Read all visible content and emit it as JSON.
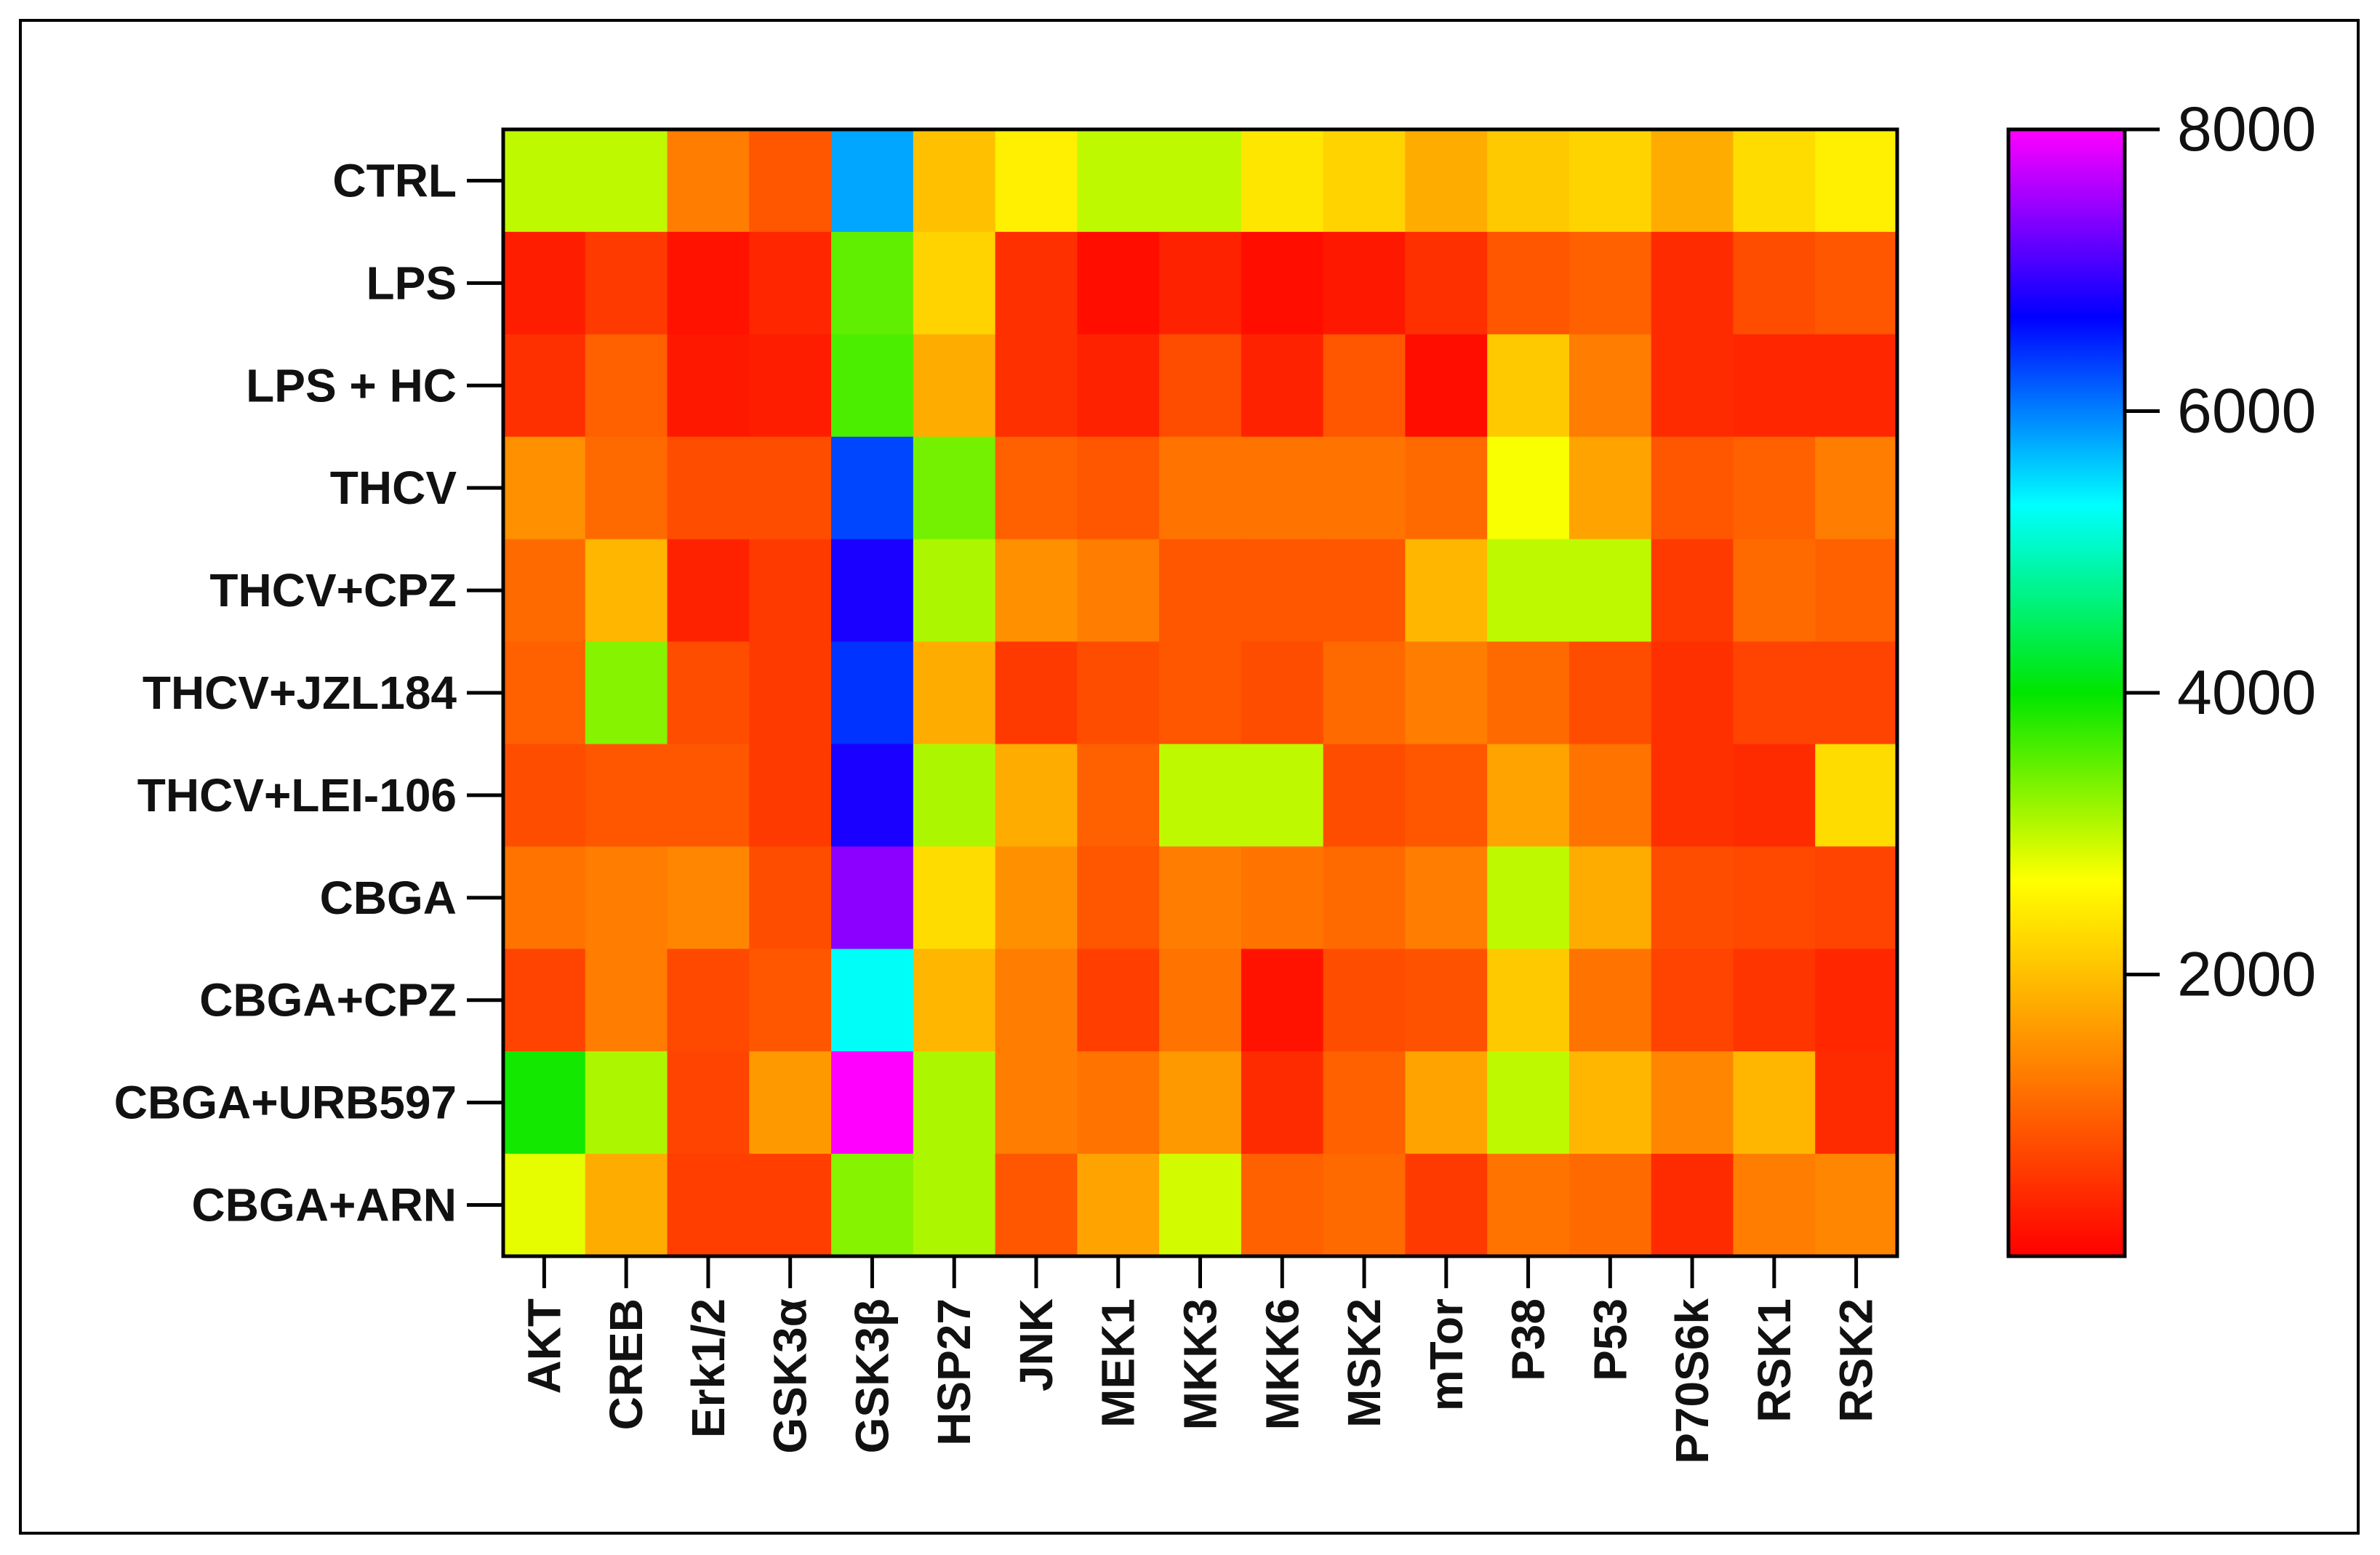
{
  "chart_data": {
    "type": "heatmap",
    "title": "",
    "xlabel": "",
    "ylabel": "",
    "rows": [
      "CTRL",
      "LPS",
      "LPS + HC",
      "THCV",
      "THCV+CPZ",
      "THCV+JZL184",
      "THCV+LEI-106",
      "CBGA",
      "CBGA+CPZ",
      "CBGA+URB597",
      "CBGA+ARN"
    ],
    "columns": [
      "AKT",
      "CREB",
      "Erk1/2",
      "GSK3α",
      "GSK3β",
      "HSP27",
      "JNK",
      "MEK1",
      "MKK3",
      "MKK6",
      "MSK2",
      "mTor",
      "P38",
      "P53",
      "P70S6k",
      "RSK1",
      "RSK2"
    ],
    "values": [
      [
        3000,
        3000,
        1300,
        900,
        5800,
        2000,
        2500,
        3000,
        3000,
        2400,
        2200,
        1800,
        2100,
        2200,
        1800,
        2300,
        2500
      ],
      [
        300,
        600,
        200,
        400,
        3500,
        2200,
        500,
        150,
        350,
        150,
        250,
        500,
        900,
        1000,
        450,
        800,
        900
      ],
      [
        500,
        1000,
        250,
        300,
        3600,
        1800,
        500,
        350,
        800,
        350,
        900,
        150,
        2100,
        1300,
        450,
        400,
        400
      ],
      [
        1500,
        1100,
        800,
        800,
        6300,
        3400,
        1000,
        900,
        1200,
        1200,
        1200,
        1100,
        2700,
        1700,
        900,
        1000,
        1300
      ],
      [
        1100,
        1900,
        350,
        600,
        6800,
        3100,
        1500,
        1300,
        900,
        900,
        900,
        1900,
        3000,
        3000,
        600,
        1100,
        1000
      ],
      [
        1000,
        3300,
        800,
        600,
        6400,
        1800,
        600,
        800,
        900,
        800,
        1100,
        1300,
        1100,
        800,
        500,
        700,
        700
      ],
      [
        800,
        900,
        900,
        600,
        6800,
        3100,
        1800,
        1000,
        3000,
        3000,
        800,
        900,
        1700,
        1200,
        500,
        450,
        2300
      ],
      [
        1200,
        1300,
        1400,
        800,
        7400,
        2300,
        1500,
        900,
        1300,
        1200,
        1100,
        1300,
        3000,
        1800,
        800,
        750,
        700
      ],
      [
        700,
        1300,
        750,
        900,
        5300,
        1900,
        1300,
        650,
        1200,
        200,
        800,
        850,
        2100,
        1200,
        700,
        550,
        400
      ],
      [
        3900,
        3100,
        700,
        1600,
        8000,
        3100,
        1300,
        1200,
        1600,
        450,
        1000,
        1700,
        3000,
        1900,
        1400,
        1900,
        450
      ],
      [
        2800,
        1800,
        650,
        650,
        3300,
        3100,
        900,
        1700,
        2900,
        1000,
        1100,
        600,
        1200,
        1100,
        450,
        1300,
        1400
      ]
    ],
    "colorbar": {
      "min": 0,
      "max": 8000,
      "ticks": [
        2000,
        4000,
        6000,
        8000
      ],
      "tick_labels": [
        "2000",
        "4000",
        "6000",
        "8000"
      ],
      "colors": [
        "#ff0000",
        "#ff8000",
        "#ffff00",
        "#00e600",
        "#00ffff",
        "#0000ff",
        "#ff00ff"
      ]
    }
  }
}
